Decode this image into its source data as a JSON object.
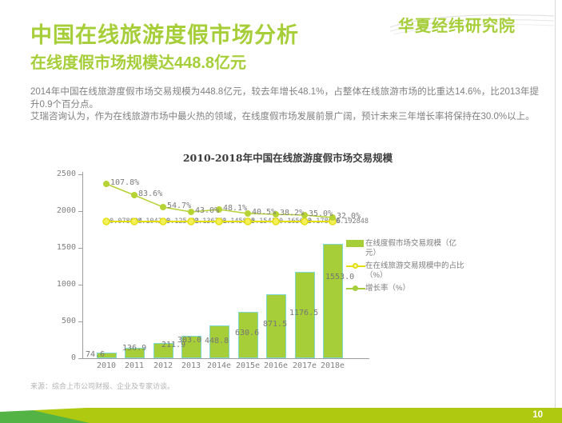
{
  "header": {
    "logo": "华夏经纬研究院",
    "title": "中国在线旅游度假市场分析",
    "subtitle": "在线度假市场规模达448.8亿元"
  },
  "body": {
    "paragraph1": "2014年中国在线旅游度假市场交易规模为448.8亿元，较去年增长48.1%，占整体在线旅游市场的比重达14.6%，比2013年提升0.9个百分点。",
    "paragraph2": "艾瑞咨询认为，作为在线旅游市场中最火热的领域，在线度假市场发展前景广阔，预计未来三年增长率将保持在30.0%以上。"
  },
  "chart_data": {
    "type": "bar",
    "title": "2010-2018年中国在线旅游度假市场交易规模",
    "categories": [
      "2010",
      "2011",
      "2012",
      "2013",
      "2014e",
      "2015e",
      "2016e",
      "2017e",
      "2018e"
    ],
    "series": [
      {
        "name": "在线度假市场交易规模（亿元）",
        "type": "bar",
        "color": "#a6ce39",
        "values": [
          74.6,
          136.9,
          211.9,
          303.0,
          448.8,
          630.6,
          871.5,
          1176.5,
          1553.0
        ],
        "labels": [
          "74.6",
          "136.9",
          "211.9",
          "303.0",
          "448.8",
          "630.6",
          "871.5",
          "1176.5",
          "1553.0"
        ]
      },
      {
        "name": "在在线旅游交易规模中的占比（%）",
        "type": "line",
        "color": "#e4df12",
        "values": [
          0.078604,
          0.104229,
          0.125402,
          0.136761,
          0.145895,
          0.15411,
          0.165603,
          0.178626,
          0.192848
        ],
        "labels": [
          "0.078604",
          "0.104229",
          "0.125402",
          "0.136761",
          "0.145895",
          "0.15411",
          "0.165603",
          "0.178626",
          "0.192848"
        ]
      },
      {
        "name": "增长率（%）",
        "type": "line",
        "color": "#a6ce39",
        "values": [
          107.8,
          83.6,
          54.7,
          43.0,
          48.1,
          40.5,
          38.2,
          35.0,
          32.0
        ],
        "labels": [
          "107.8%",
          "83.6%",
          "54.7%",
          "43.0%",
          "48.1%",
          "40.5%",
          "38.2%",
          "35.0%",
          "32.0%"
        ]
      }
    ],
    "y_axis": {
      "ticks": [
        0,
        500,
        1000,
        1500,
        2000,
        2500
      ],
      "max": 2500
    },
    "grid": false,
    "legend_position": "right"
  },
  "footer": {
    "source": "来源：综合上市公司财报、企业及专家访谈。",
    "page_number": "10"
  }
}
